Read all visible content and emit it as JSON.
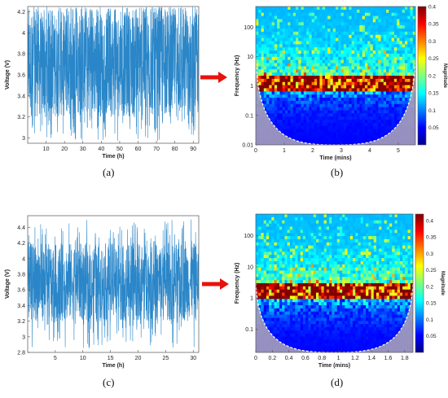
{
  "colors": {
    "signal": "#2a86c8",
    "arrow": "#e8120c",
    "cone": "#b0a9b5"
  },
  "captions": [
    "(a)",
    "(b)",
    "(c)",
    "(d)"
  ],
  "colorbar_label": "Magnitude",
  "chart_data": [
    {
      "type": "line",
      "panel": "a",
      "xlabel": "Time (h)",
      "ylabel": "Voltage (V)",
      "xlim": [
        0,
        93
      ],
      "ylim": [
        2.95,
        4.25
      ],
      "xticks": [
        10,
        20,
        30,
        40,
        50,
        60,
        70,
        80,
        90
      ],
      "yticks": [
        3,
        3.2,
        3.4,
        3.6,
        3.8,
        4,
        4.2
      ],
      "series": [
        {
          "description": "random voltage switching between about 3.2 V and 4.2 V",
          "min": 2.97,
          "max": 4.25,
          "dense_band": [
            3.2,
            4.2
          ]
        }
      ],
      "grid": false
    },
    {
      "type": "heatmap",
      "panel": "b",
      "xlabel": "Time (mins)",
      "ylabel": "Frequency (Hz)",
      "xlim": [
        0,
        5.6
      ],
      "xticks": [
        0,
        1,
        2,
        3,
        4,
        5
      ],
      "yticks": [
        "100",
        "10",
        "1",
        "0.1",
        "0.01"
      ],
      "yscale": "log",
      "colorbar": {
        "label": "Magnitude",
        "ticks": [
          "0.05",
          "0.1",
          "0.15",
          "0.2",
          "0.25",
          "0.3",
          "0.35",
          "0.4"
        ],
        "range": [
          0,
          0.4
        ]
      },
      "peak_band_hz": 1.3
    },
    {
      "type": "line",
      "panel": "c",
      "xlabel": "Time (h)",
      "ylabel": "Voltage (V)",
      "xlim": [
        0,
        31
      ],
      "ylim": [
        2.8,
        4.55
      ],
      "xticks": [
        5,
        10,
        15,
        20,
        25,
        30
      ],
      "yticks": [
        2.8,
        3,
        3.2,
        3.4,
        3.6,
        3.8,
        4,
        4.2,
        4.4
      ],
      "series": [
        {
          "description": "random voltage switching between about 3.2 V and 4.2 V",
          "min": 2.85,
          "max": 4.5,
          "dense_band": [
            3.2,
            4.2
          ]
        }
      ],
      "grid": false
    },
    {
      "type": "heatmap",
      "panel": "d",
      "xlabel": "Time (mins)",
      "ylabel": "Frequency (Hz)",
      "xlim": [
        0,
        1.9
      ],
      "xticks": [
        0,
        0.2,
        0.4,
        0.6,
        0.8,
        1,
        1.2,
        1.4,
        1.6,
        1.8
      ],
      "yticks": [
        "100",
        "10",
        "1",
        "0.1"
      ],
      "yscale": "log",
      "colorbar": {
        "label": "Magnitude",
        "ticks": [
          "0.05",
          "0.1",
          "0.15",
          "0.2",
          "0.25",
          "0.3",
          "0.35",
          "0.4"
        ],
        "range": [
          0,
          0.42
        ]
      },
      "peak_band_hz": 1.5
    }
  ]
}
